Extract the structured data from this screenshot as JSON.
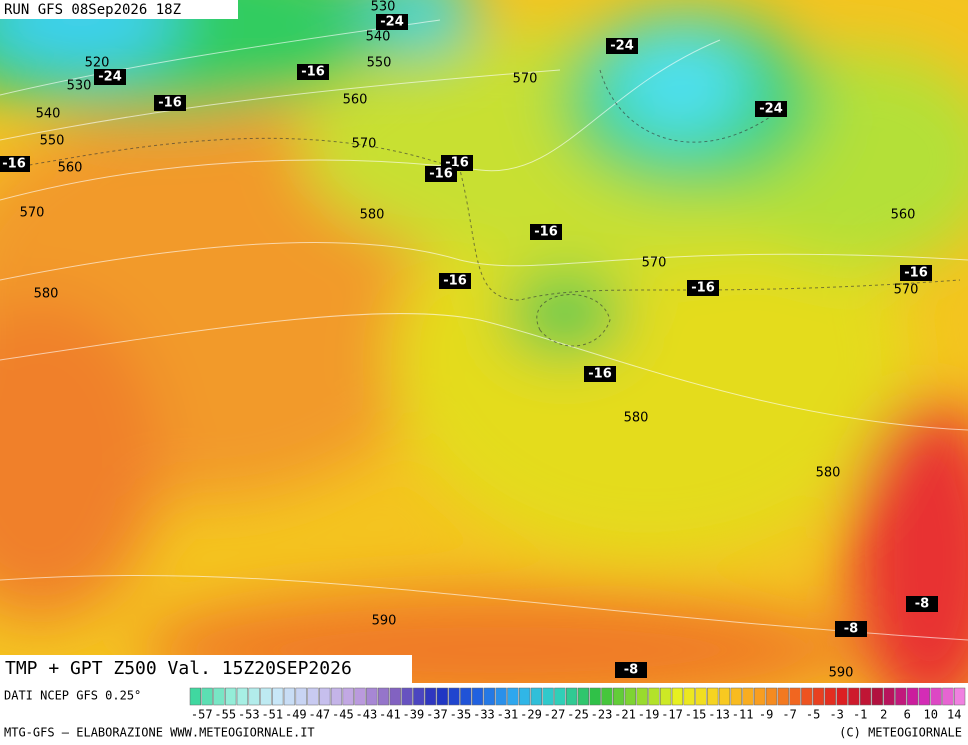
{
  "header": {
    "run": "RUN GFS 08Sep2026 18Z"
  },
  "map": {
    "height_labels": [
      "530",
      "540",
      "520",
      "530",
      "550",
      "570",
      "560",
      "540",
      "550",
      "560",
      "570",
      "570",
      "580",
      "560",
      "570",
      "580",
      "570",
      "580",
      "580",
      "590",
      "590"
    ],
    "temperature_labels": [
      "-24",
      "-24",
      "-16",
      "-16",
      "-16",
      "-16",
      "-16",
      "-24",
      "-24",
      "-16",
      "-16",
      "-16",
      "-16",
      "-16",
      "-8",
      "-8",
      "-8"
    ]
  },
  "footer": {
    "title": "TMP + GPT Z500 Val. 15Z20SEP2026",
    "source": "DATI NCEP GFS 0.25°",
    "scale_labels": [
      "-57",
      "-55",
      "-53",
      "-51",
      "-49",
      "-47",
      "-45",
      "-43",
      "-41",
      "-39",
      "-37",
      "-35",
      "-33",
      "-31",
      "-29",
      "-27",
      "-25",
      "-23",
      "-21",
      "-19",
      "-17",
      "-15",
      "-13",
      "-11",
      "-9",
      "-7",
      "-5",
      "-3",
      "-1",
      "2",
      "6",
      "10",
      "14"
    ],
    "credit": "MTG-GFS — ELABORAZIONE WWW.METEOGIORNALE.IT",
    "copyright": "(C) METEOGIORNALE"
  }
}
